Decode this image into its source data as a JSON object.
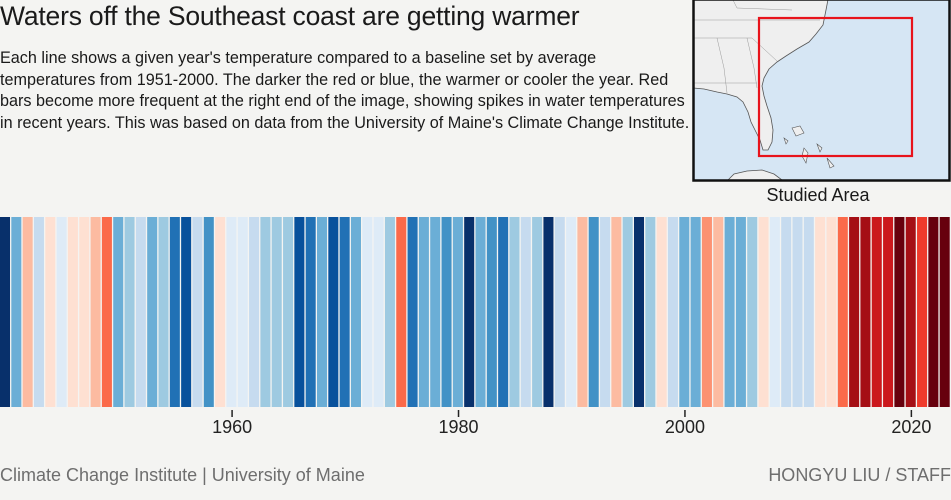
{
  "header": {
    "title": "Waters off the Southeast coast are getting warmer",
    "description": "Each line shows a given year's temperature compared to a baseline set by average temperatures from 1951-2000. The darker the red or blue, the warmer or cooler the year. Red bars become more frequent at the right end of the image, showing spikes in water temperatures in recent years. This was based on data from the University of Maine's Climate Change Institute."
  },
  "map": {
    "caption": "Studied Area",
    "highlight_color": "#e8131b",
    "ocean_color": "#d6e6f4",
    "land_color": "#efefef"
  },
  "chart_data": {
    "type": "heatmap",
    "title": "",
    "xlabel": "",
    "ylabel": "",
    "x_range": [
      1940,
      2023
    ],
    "tick_labels": [
      "1960",
      "1980",
      "2000",
      "2020"
    ],
    "tick_values": [
      1960,
      1980,
      2000,
      2020
    ],
    "grid": false,
    "years_start": 1940,
    "colors": [
      "#08306b",
      "#6baed6",
      "#fcbba1",
      "#c6dbef",
      "#fee0d2",
      "#deebf7",
      "#fee0d2",
      "#fee0d2",
      "#fcbba1",
      "#fb6a4a",
      "#6baed6",
      "#9ecae1",
      "#c6dbef",
      "#6baed6",
      "#9ecae1",
      "#2171b5",
      "#08519c",
      "#c6dbef",
      "#4292c6",
      "#fee0d2",
      "#deebf7",
      "#deebf7",
      "#c6dbef",
      "#9ecae1",
      "#9ecae1",
      "#9ecae1",
      "#08519c",
      "#2171b5",
      "#6baed6",
      "#08519c",
      "#2171b5",
      "#6baed6",
      "#deebf7",
      "#deebf7",
      "#9ecae1",
      "#fb6a4a",
      "#2171b5",
      "#6baed6",
      "#6baed6",
      "#4292c6",
      "#6baed6",
      "#08306b",
      "#6baed6",
      "#4292c6",
      "#2171b5",
      "#9ecae1",
      "#c6dbef",
      "#9ecae1",
      "#08306b",
      "#c6dbef",
      "#deebf7",
      "#fcbba1",
      "#4292c6",
      "#c6dbef",
      "#fcbba1",
      "#9ecae1",
      "#08306b",
      "#9ecae1",
      "#fee0d2",
      "#c6dbef",
      "#6baed6",
      "#6baed6",
      "#fc9272",
      "#fcbba1",
      "#6baed6",
      "#6baed6",
      "#9ecae1",
      "#fee0d2",
      "#deebf7",
      "#c6dbef",
      "#c6dbef",
      "#c6dbef",
      "#fee0d2",
      "#fee0d2",
      "#fb6a4a",
      "#a50f15",
      "#a50f15",
      "#cb181d",
      "#cb181d",
      "#67000d",
      "#a50f15",
      "#ef3b2c",
      "#67000d",
      "#67000d"
    ]
  },
  "footer": {
    "source": "Climate Change Institute | University of Maine",
    "credit": "HONGYU LIU / STAFF"
  }
}
